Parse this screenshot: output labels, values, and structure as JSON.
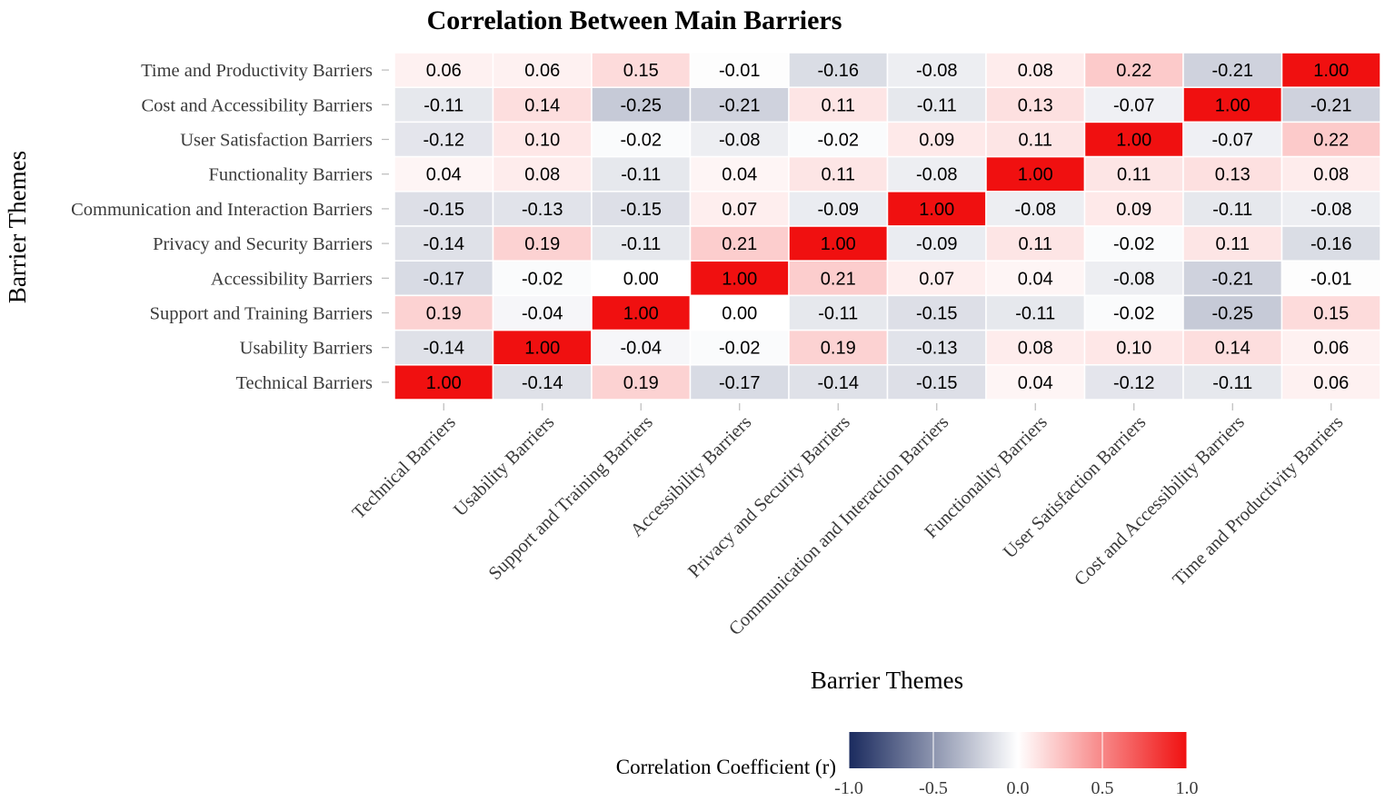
{
  "chart_data": {
    "type": "heatmap",
    "title": "Correlation Between Main Barriers",
    "xlabel": "Barrier Themes",
    "ylabel": "Barrier Themes",
    "x_categories": [
      "Technical Barriers",
      "Usability Barriers",
      "Support and Training Barriers",
      "Accessibility Barriers",
      "Privacy and Security Barriers",
      "Communication and Interaction Barriers",
      "Functionality Barriers",
      "User Satisfaction Barriers",
      "Cost and Accessibility Barriers",
      "Time and Productivity Barriers"
    ],
    "y_categories_top_to_bottom": [
      "Time and Productivity Barriers",
      "Cost and Accessibility Barriers",
      "User Satisfaction Barriers",
      "Functionality Barriers",
      "Communication and Interaction Barriers",
      "Privacy and Security Barriers",
      "Accessibility Barriers",
      "Support and Training Barriers",
      "Usability Barriers",
      "Technical Barriers"
    ],
    "values": [
      [
        0.06,
        0.06,
        0.15,
        -0.01,
        -0.16,
        -0.08,
        0.08,
        0.22,
        -0.21,
        1.0
      ],
      [
        -0.11,
        0.14,
        -0.25,
        -0.21,
        0.11,
        -0.11,
        0.13,
        -0.07,
        1.0,
        -0.21
      ],
      [
        -0.12,
        0.1,
        -0.02,
        -0.08,
        -0.02,
        0.09,
        0.11,
        1.0,
        -0.07,
        0.22
      ],
      [
        0.04,
        0.08,
        -0.11,
        0.04,
        0.11,
        -0.08,
        1.0,
        0.11,
        0.13,
        0.08
      ],
      [
        -0.15,
        -0.13,
        -0.15,
        0.07,
        -0.09,
        1.0,
        -0.08,
        0.09,
        -0.11,
        -0.08
      ],
      [
        -0.14,
        0.19,
        -0.11,
        0.21,
        1.0,
        -0.09,
        0.11,
        -0.02,
        0.11,
        -0.16
      ],
      [
        -0.17,
        -0.02,
        -0.0,
        1.0,
        0.21,
        0.07,
        0.04,
        -0.08,
        -0.21,
        -0.01
      ],
      [
        0.19,
        -0.04,
        1.0,
        -0.0,
        -0.11,
        -0.15,
        -0.11,
        -0.02,
        -0.25,
        0.15
      ],
      [
        -0.14,
        1.0,
        -0.04,
        -0.02,
        0.19,
        -0.13,
        0.08,
        0.1,
        0.14,
        0.06
      ],
      [
        1.0,
        -0.14,
        0.19,
        -0.17,
        -0.14,
        -0.15,
        0.04,
        -0.12,
        -0.11,
        0.06
      ]
    ],
    "value_range": [
      -1.0,
      1.0
    ],
    "legend": {
      "title": "Correlation Coefficient (r)",
      "ticks": [
        "-1.0",
        "-0.5",
        "0.0",
        "0.5",
        "1.0"
      ],
      "position": "bottom"
    },
    "colors": {
      "low": "#1a2a5e",
      "mid": "#ffffff",
      "high": "#f01010"
    }
  }
}
